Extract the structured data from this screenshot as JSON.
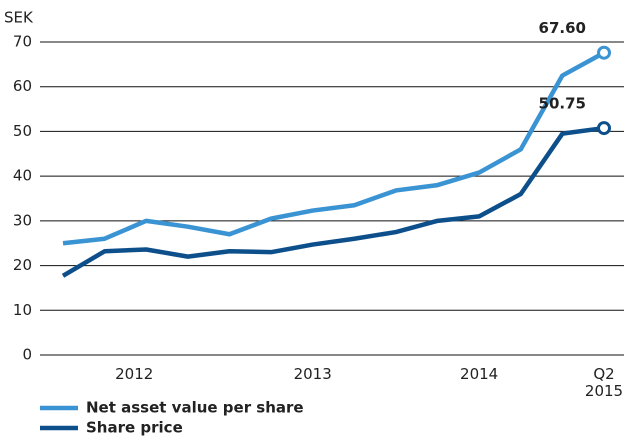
{
  "chart_data": {
    "type": "line",
    "y_label": "SEK",
    "categories": [
      null,
      null,
      "2012",
      null,
      null,
      null,
      "2013",
      null,
      null,
      null,
      "2014",
      null,
      null,
      "Q2\n2015"
    ],
    "series": [
      {
        "name": "Net asset value per share",
        "color": "#3a93d2",
        "values": [
          25,
          26,
          30,
          28.7,
          27,
          30.5,
          32.3,
          33.5,
          36.8,
          38,
          40.8,
          46,
          62.5,
          67.6
        ],
        "value_labels": [
          null,
          null,
          null,
          null,
          null,
          null,
          null,
          null,
          null,
          null,
          null,
          null,
          null,
          "67.60"
        ]
      },
      {
        "name": "Share price",
        "color": "#0d4f8b",
        "values": [
          17.7,
          23.2,
          23.6,
          22,
          23.2,
          23,
          24.7,
          26,
          27.5,
          30,
          31,
          36,
          49.5,
          50.75
        ],
        "value_labels": [
          null,
          null,
          null,
          null,
          null,
          null,
          null,
          null,
          null,
          null,
          null,
          null,
          null,
          "50.75"
        ]
      }
    ],
    "ylim": [
      0,
      70
    ],
    "yticks": [
      0,
      10,
      20,
      30,
      40,
      50,
      60,
      70
    ],
    "grid": true
  }
}
